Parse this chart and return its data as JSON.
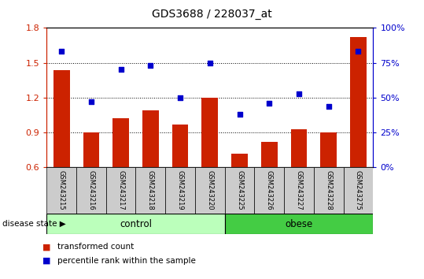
{
  "title": "GDS3688 / 228037_at",
  "categories": [
    "GSM243215",
    "GSM243216",
    "GSM243217",
    "GSM243218",
    "GSM243219",
    "GSM243220",
    "GSM243225",
    "GSM243226",
    "GSM243227",
    "GSM243228",
    "GSM243275"
  ],
  "bar_values": [
    1.44,
    0.9,
    1.02,
    1.09,
    0.97,
    1.2,
    0.72,
    0.82,
    0.93,
    0.9,
    1.72
  ],
  "dot_values": [
    83,
    47,
    70,
    73,
    50,
    75,
    38,
    46,
    53,
    44,
    83
  ],
  "ylim_left": [
    0.6,
    1.8
  ],
  "ylim_right": [
    0,
    100
  ],
  "yticks_left": [
    0.6,
    0.9,
    1.2,
    1.5,
    1.8
  ],
  "yticks_right": [
    0,
    25,
    50,
    75,
    100
  ],
  "ytick_labels_right": [
    "0%",
    "25%",
    "50%",
    "75%",
    "100%"
  ],
  "bar_color": "#cc2200",
  "dot_color": "#0000cc",
  "control_color": "#bbffbb",
  "obese_color": "#44cc44",
  "control_label": "control",
  "obese_label": "obese",
  "disease_state_label": "disease state",
  "legend_bar_label": "transformed count",
  "legend_dot_label": "percentile rank within the sample",
  "n_bars": 11,
  "bar_bottom": 0.6
}
